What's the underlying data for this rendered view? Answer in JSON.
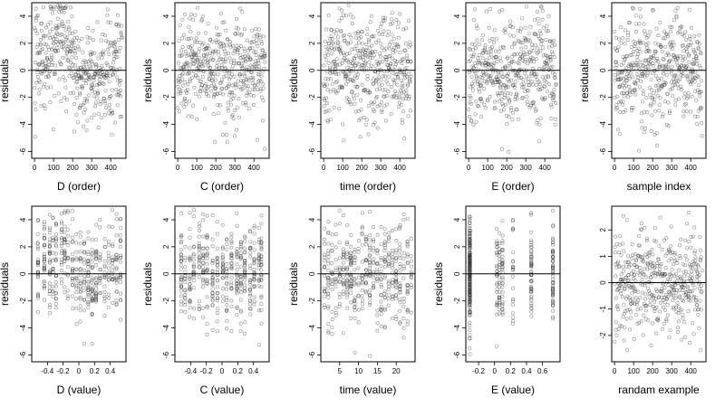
{
  "chart_data": [
    {
      "type": "scatter",
      "xlabel": "D (order)",
      "ylabel": "residuals",
      "xlim": [
        -15,
        480
      ],
      "ylim": [
        -6.5,
        5
      ],
      "xticks": [
        0,
        100,
        200,
        300,
        400
      ],
      "yticks": [
        -6,
        -4,
        -2,
        0,
        2,
        4
      ],
      "hline": 0,
      "x_kind": "index",
      "n": 460,
      "y_trend": [
        [
          0,
          0.6
        ],
        [
          60,
          0.8
        ],
        [
          130,
          2.4
        ],
        [
          170,
          1.6
        ],
        [
          240,
          -0.5
        ],
        [
          300,
          -0.6
        ],
        [
          360,
          -0.1
        ],
        [
          420,
          0.5
        ],
        [
          460,
          0.3
        ]
      ],
      "y_spread": 1.9
    },
    {
      "type": "scatter",
      "xlabel": "C (order)",
      "ylabel": "residuals",
      "xlim": [
        -15,
        480
      ],
      "ylim": [
        -6.5,
        5
      ],
      "xticks": [
        0,
        100,
        200,
        300,
        400
      ],
      "yticks": [
        -6,
        -4,
        -2,
        0,
        2,
        4
      ],
      "hline": 0,
      "x_kind": "index",
      "n": 460,
      "y_trend": [
        [
          0,
          0.3
        ],
        [
          100,
          0.7
        ],
        [
          200,
          0
        ],
        [
          300,
          0.1
        ],
        [
          400,
          0.4
        ],
        [
          460,
          -0.1
        ]
      ],
      "y_spread": 1.9
    },
    {
      "type": "scatter",
      "xlabel": "time (order)",
      "ylabel": "residuals",
      "xlim": [
        -15,
        480
      ],
      "ylim": [
        -6.5,
        5
      ],
      "xticks": [
        0,
        100,
        200,
        300,
        400
      ],
      "yticks": [
        -6,
        -4,
        -2,
        0,
        2,
        4
      ],
      "hline": 0,
      "x_kind": "index",
      "n": 460,
      "y_trend": [
        [
          0,
          0
        ],
        [
          100,
          0.5
        ],
        [
          200,
          -0.2
        ],
        [
          300,
          0.2
        ],
        [
          400,
          0.1
        ],
        [
          460,
          0
        ]
      ],
      "y_spread": 1.9
    },
    {
      "type": "scatter",
      "xlabel": "E (order)",
      "ylabel": "residuals",
      "xlim": [
        -15,
        480
      ],
      "ylim": [
        -6.5,
        5
      ],
      "xticks": [
        0,
        100,
        200,
        300,
        400
      ],
      "yticks": [
        -6,
        -4,
        -2,
        0,
        2,
        4
      ],
      "hline": 0,
      "x_kind": "index",
      "n": 460,
      "y_trend": [
        [
          0,
          -0.5
        ],
        [
          100,
          0.4
        ],
        [
          200,
          -0.6
        ],
        [
          300,
          0.5
        ],
        [
          400,
          0.1
        ],
        [
          460,
          -0.4
        ]
      ],
      "y_spread": 1.9
    },
    {
      "type": "scatter",
      "xlabel": "sample index",
      "ylabel": "residuals",
      "xlim": [
        -15,
        480
      ],
      "ylim": [
        -6.5,
        5
      ],
      "xticks": [
        0,
        100,
        200,
        300,
        400
      ],
      "yticks": [
        -6,
        -4,
        -2,
        0,
        2,
        4
      ],
      "hline": 0,
      "x_kind": "index",
      "n": 460,
      "y_trend": [
        [
          0,
          -0.3
        ],
        [
          100,
          0.6
        ],
        [
          200,
          -0.4
        ],
        [
          300,
          0.5
        ],
        [
          400,
          0.2
        ],
        [
          460,
          -0.6
        ]
      ],
      "y_spread": 1.9
    },
    {
      "type": "scatter",
      "xlabel": "D (value)",
      "ylabel": "residuals",
      "xlim": [
        -0.6,
        0.6
      ],
      "ylim": [
        -6.5,
        5
      ],
      "xticks": [
        -0.4,
        -0.2,
        0.0,
        0.2,
        0.4
      ],
      "yticks": [
        -6,
        -4,
        -2,
        0,
        2,
        4
      ],
      "hline": 0,
      "x_kind": "clustered",
      "n": 460,
      "x_clusters": [
        -0.52,
        -0.44,
        -0.37,
        -0.33,
        -0.29,
        -0.22,
        -0.18,
        -0.14,
        -0.08,
        -0.03,
        0.02,
        0.07,
        0.12,
        0.17,
        0.22,
        0.27,
        0.33,
        0.38,
        0.43,
        0.48,
        0.53
      ],
      "y_trend": [
        [
          -0.55,
          0.3
        ],
        [
          -0.3,
          0.6
        ],
        [
          -0.2,
          2.2
        ],
        [
          -0.1,
          0.8
        ],
        [
          0,
          -0.6
        ],
        [
          0.1,
          -0.5
        ],
        [
          0.3,
          0.2
        ],
        [
          0.55,
          0.3
        ]
      ],
      "y_spread": 1.8
    },
    {
      "type": "scatter",
      "xlabel": "C (value)",
      "ylabel": "residuals",
      "xlim": [
        -0.6,
        0.6
      ],
      "ylim": [
        -6.5,
        5
      ],
      "xticks": [
        -0.4,
        -0.2,
        0.0,
        0.2,
        0.4
      ],
      "yticks": [
        -6,
        -4,
        -2,
        0,
        2,
        4
      ],
      "hline": 0,
      "x_kind": "clustered",
      "n": 460,
      "x_clusters": [
        -0.52,
        -0.47,
        -0.41,
        -0.36,
        -0.29,
        -0.24,
        -0.19,
        -0.12,
        -0.06,
        0.01,
        0.06,
        0.12,
        0.19,
        0.24,
        0.29,
        0.36,
        0.41,
        0.47,
        0.5
      ],
      "y_trend": [
        [
          -0.5,
          0.2
        ],
        [
          0,
          0
        ],
        [
          0.5,
          0.1
        ]
      ],
      "y_spread": 1.9
    },
    {
      "type": "scatter",
      "xlabel": "time (value)",
      "ylabel": "residuals",
      "xlim": [
        0,
        25
      ],
      "ylim": [
        -6.5,
        5
      ],
      "xticks": [
        5,
        10,
        15,
        20
      ],
      "yticks": [
        -6,
        -4,
        -2,
        0,
        2,
        4
      ],
      "hline": 0,
      "x_kind": "clustered",
      "n": 460,
      "x_clusters": [
        1,
        2,
        3,
        4,
        5,
        6,
        7,
        8,
        9,
        10,
        11,
        12,
        13,
        14,
        15,
        16,
        17,
        18,
        19,
        20,
        21,
        22,
        23,
        24
      ],
      "y_trend": [
        [
          1,
          0
        ],
        [
          12,
          0.2
        ],
        [
          24,
          0
        ]
      ],
      "y_spread": 1.9
    },
    {
      "type": "scatter",
      "xlabel": "E (value)",
      "ylabel": "residuals",
      "xlim": [
        -0.36,
        0.82
      ],
      "ylim": [
        -6.5,
        5
      ],
      "xticks": [
        -0.2,
        0.0,
        0.2,
        0.4,
        0.6
      ],
      "yticks": [
        -6,
        -4,
        -2,
        0,
        2,
        4
      ],
      "hline": 0,
      "x_kind": "clustered",
      "n": 420,
      "x_clusters": [
        -0.31,
        -0.31,
        -0.31,
        -0.31,
        -0.31,
        -0.31,
        -0.31,
        -0.31,
        0.03,
        0.06,
        0.1,
        0.23,
        0.46,
        0.46,
        0.73,
        0.73
      ],
      "y_trend": [
        [
          -0.31,
          0
        ],
        [
          0.73,
          0
        ]
      ],
      "y_spread": 1.9
    },
    {
      "type": "scatter",
      "xlabel": "randam example",
      "ylabel": "",
      "xlim": [
        -15,
        480
      ],
      "ylim": [
        -3,
        2.9
      ],
      "xticks": [
        0,
        100,
        200,
        300,
        400
      ],
      "yticks": [
        -2,
        -1,
        0,
        1,
        2
      ],
      "hline": 0,
      "x_kind": "index",
      "n": 460,
      "y_trend": [
        [
          0,
          0
        ],
        [
          460,
          0
        ]
      ],
      "y_spread": 1.0
    }
  ]
}
